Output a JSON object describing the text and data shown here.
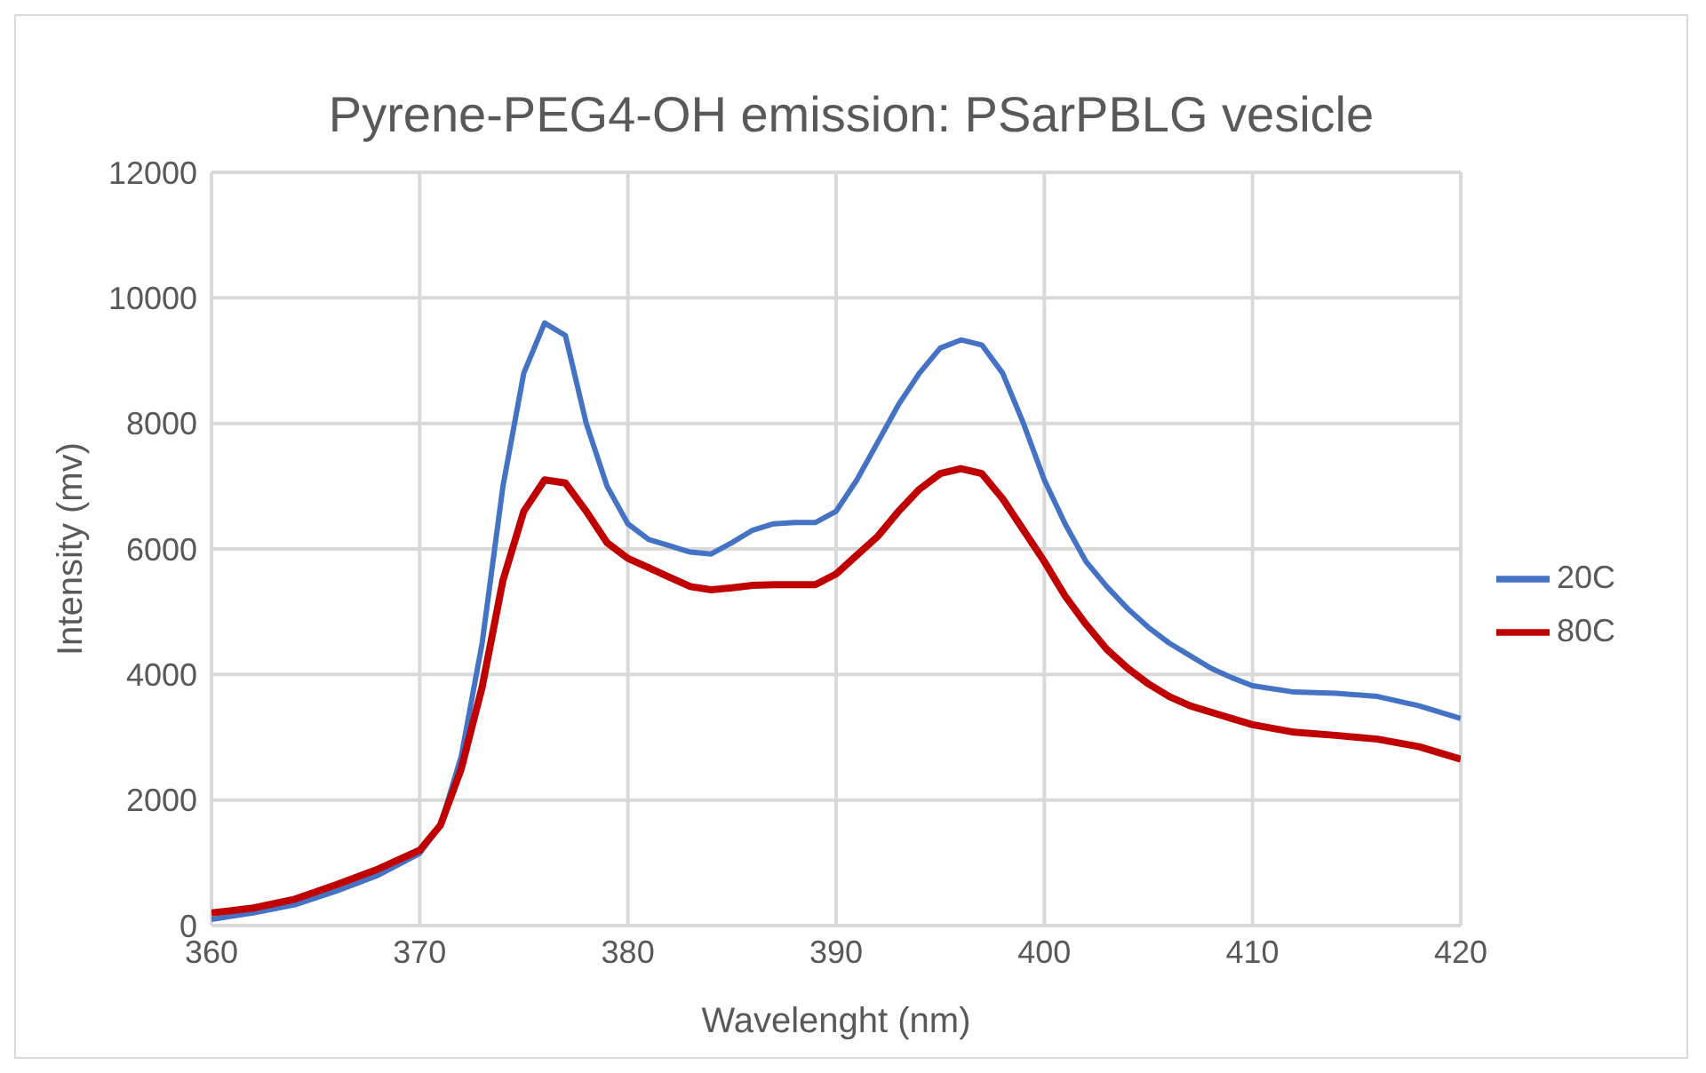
{
  "chart_data": {
    "type": "line",
    "title": "Pyrene-PEG4-OH emission: PSarPBLG vesicle",
    "xlabel": "Wavelenght (nm)",
    "ylabel": "Intensity (mv)",
    "x": [
      360,
      362,
      364,
      366,
      368,
      370,
      371,
      372,
      373,
      374,
      375,
      376,
      377,
      378,
      379,
      380,
      381,
      382,
      383,
      384,
      385,
      386,
      387,
      388,
      389,
      390,
      391,
      392,
      393,
      394,
      395,
      396,
      397,
      398,
      399,
      400,
      401,
      402,
      403,
      404,
      405,
      406,
      407,
      408,
      409,
      410,
      412,
      414,
      416,
      418,
      420
    ],
    "series": [
      {
        "name": "20C",
        "color": "#4472c4",
        "values": [
          100,
          200,
          330,
          550,
          800,
          1150,
          1600,
          2700,
          4500,
          7000,
          8800,
          9600,
          9400,
          8000,
          7000,
          6400,
          6150,
          6050,
          5950,
          5920,
          6100,
          6300,
          6400,
          6420,
          6420,
          6600,
          7100,
          7700,
          8300,
          8800,
          9200,
          9330,
          9250,
          8800,
          8000,
          7100,
          6400,
          5800,
          5400,
          5050,
          4750,
          4500,
          4300,
          4100,
          3950,
          3820,
          3720,
          3700,
          3650,
          3500,
          3300
        ]
      },
      {
        "name": "80C",
        "color": "#c00000",
        "values": [
          200,
          280,
          420,
          650,
          900,
          1200,
          1600,
          2500,
          3800,
          5500,
          6600,
          7100,
          7050,
          6600,
          6100,
          5850,
          5700,
          5550,
          5400,
          5350,
          5380,
          5420,
          5430,
          5430,
          5430,
          5600,
          5900,
          6200,
          6600,
          6950,
          7200,
          7280,
          7200,
          6800,
          6300,
          5800,
          5250,
          4800,
          4400,
          4100,
          3850,
          3650,
          3500,
          3400,
          3300,
          3200,
          3080,
          3030,
          2970,
          2850,
          2650
        ]
      }
    ],
    "xlim": [
      360,
      420
    ],
    "xticks": [
      360,
      370,
      380,
      390,
      400,
      410,
      420
    ],
    "ylim": [
      0,
      12000
    ],
    "yticks": [
      0,
      2000,
      4000,
      6000,
      8000,
      10000,
      12000
    ],
    "grid": true,
    "legend": "right",
    "marker": "none",
    "line_style": "solid"
  }
}
